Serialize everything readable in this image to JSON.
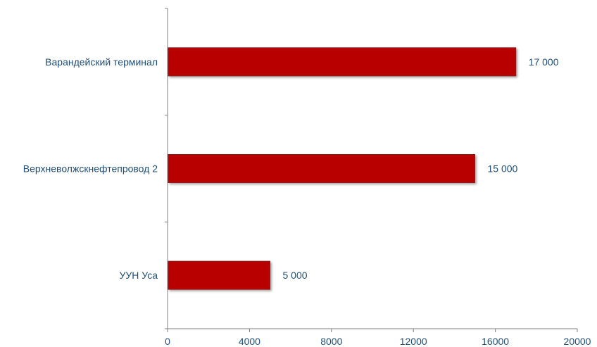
{
  "chart_data": {
    "type": "bar",
    "orientation": "horizontal",
    "categories": [
      "Варандейский терминал",
      "Верхневолжскнефтепровод 2",
      "УУН Уса"
    ],
    "values": [
      17000,
      15000,
      5000
    ],
    "value_labels": [
      "17 000",
      "15 000",
      "5 000"
    ],
    "xlim": [
      0,
      20000
    ],
    "xticks": [
      0,
      4000,
      8000,
      12000,
      16000,
      20000
    ],
    "xtick_labels": [
      "0",
      "4000",
      "8000",
      "12000",
      "16000",
      "20000"
    ],
    "title": "",
    "xlabel": "",
    "ylabel": "",
    "grid": false,
    "legend": "none",
    "colors": {
      "bar": "#B90505",
      "bar_edge": "#8a1a1a",
      "text": "#1F4E79",
      "axis": "#7f7f7f"
    }
  }
}
